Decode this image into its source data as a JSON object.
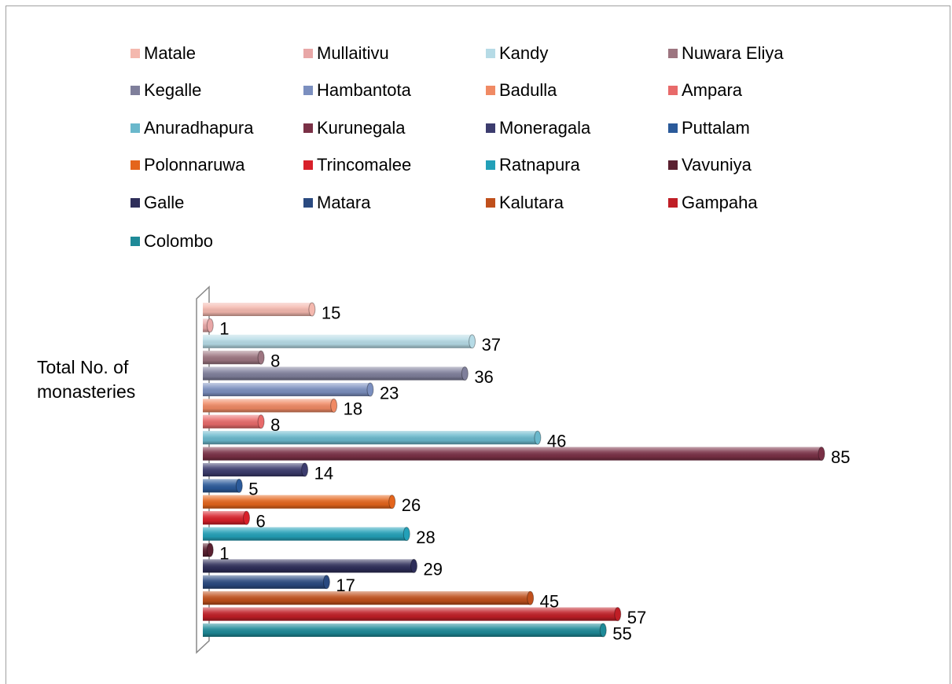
{
  "chart_data": {
    "type": "bar",
    "orientation": "horizontal",
    "categories": [
      "Total No. of monasteries"
    ],
    "series": [
      {
        "name": "Matale",
        "color": "#f4b8ae",
        "values": [
          15
        ]
      },
      {
        "name": "Mullaitivu",
        "color": "#e8a7a7",
        "values": [
          1
        ]
      },
      {
        "name": "Kandy",
        "color": "#b6dbe6",
        "values": [
          37
        ]
      },
      {
        "name": "Nuwara Eliya",
        "color": "#9d7580",
        "values": [
          8
        ]
      },
      {
        "name": "Kegalle",
        "color": "#7f7f9b",
        "values": [
          36
        ]
      },
      {
        "name": "Hambantota",
        "color": "#7b8fbf",
        "values": [
          23
        ]
      },
      {
        "name": "Badulla",
        "color": "#f08a64",
        "values": [
          18
        ]
      },
      {
        "name": "Ampara",
        "color": "#e86a6a",
        "values": [
          8
        ]
      },
      {
        "name": "Anuradhapura",
        "color": "#6ab8cc",
        "values": [
          46
        ]
      },
      {
        "name": "Kurunegala",
        "color": "#7a3046",
        "values": [
          85
        ]
      },
      {
        "name": "Moneragala",
        "color": "#3c3c6e",
        "values": [
          14
        ]
      },
      {
        "name": "Puttalam",
        "color": "#2b5a9a",
        "values": [
          5
        ]
      },
      {
        "name": "Polonnaruwa",
        "color": "#e4651c",
        "values": [
          26
        ]
      },
      {
        "name": "Trincomalee",
        "color": "#d8202a",
        "values": [
          6
        ]
      },
      {
        "name": "Ratnapura",
        "color": "#23a0b8",
        "values": [
          28
        ]
      },
      {
        "name": "Vavuniya",
        "color": "#5a2030",
        "values": [
          1
        ]
      },
      {
        "name": "Galle",
        "color": "#2e2e5a",
        "values": [
          29
        ]
      },
      {
        "name": "Matara",
        "color": "#2a4a80",
        "values": [
          17
        ]
      },
      {
        "name": "Kalutara",
        "color": "#c0501c",
        "values": [
          45
        ]
      },
      {
        "name": "Gampaha",
        "color": "#c01e26",
        "values": [
          57
        ]
      },
      {
        "name": "Colombo",
        "color": "#1e8a98",
        "values": [
          55
        ]
      }
    ],
    "legend": "top",
    "data_labels": true
  }
}
